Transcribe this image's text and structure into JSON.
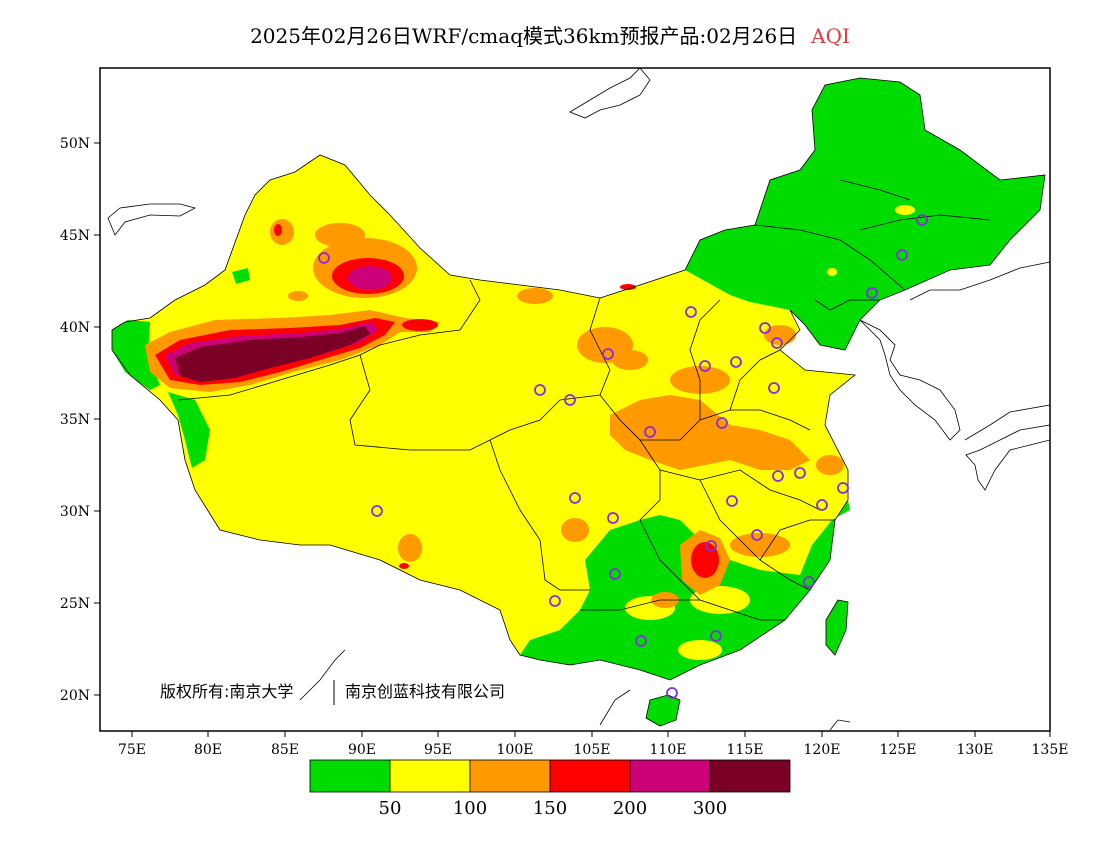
{
  "title": {
    "text": "2025年02月26日WRF/cmaq模式36km预报产品:02月26日",
    "variable": "AQI",
    "variable_color": "#e33b3b"
  },
  "axes": {
    "lon_labels": [
      "75E",
      "80E",
      "85E",
      "90E",
      "95E",
      "100E",
      "105E",
      "110E",
      "115E",
      "120E",
      "125E",
      "130E",
      "135E"
    ],
    "lat_labels": [
      "50N",
      "45N",
      "40N",
      "35N",
      "30N",
      "25N",
      "20N"
    ]
  },
  "copyright": {
    "left": "版权所有:南京大学",
    "right": "南京创蓝科技有限公司"
  },
  "legend": {
    "colors": [
      "#00dc00",
      "#ffff00",
      "#ff9900",
      "#ff0000",
      "#cc0077",
      "#7a0026"
    ],
    "labels": [
      "50",
      "100",
      "150",
      "200",
      "300"
    ]
  },
  "colors": {
    "green": "#00dc00",
    "yellow": "#ffff00",
    "orange": "#ff9900",
    "red": "#ff0000",
    "magenta": "#cc0077",
    "maroon": "#7a0026",
    "station_marker": "#8a2be2"
  }
}
